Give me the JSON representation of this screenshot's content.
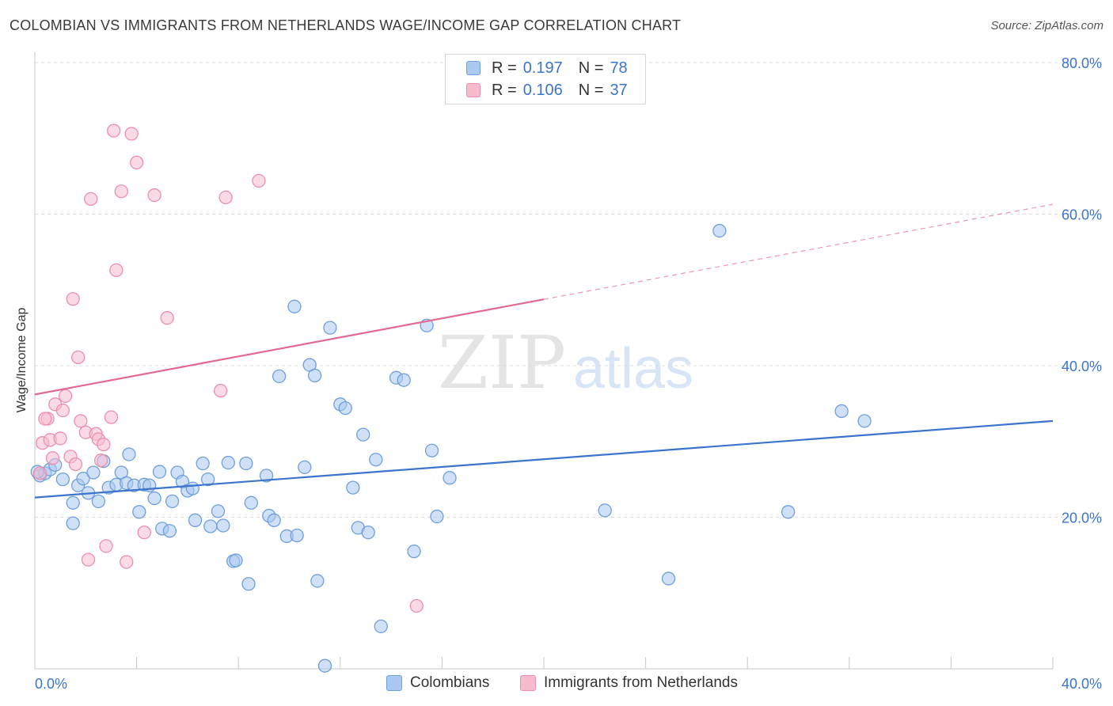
{
  "header": {
    "title": "COLOMBIAN VS IMMIGRANTS FROM NETHERLANDS WAGE/INCOME GAP CORRELATION CHART",
    "source": "Source: ZipAtlas.com"
  },
  "watermark": {
    "zip": "ZIP",
    "atlas": "atlas"
  },
  "legend_top": {
    "rows": [
      {
        "r_label": "R =",
        "r_value": "0.197",
        "n_label": "N =",
        "n_value": "78"
      },
      {
        "r_label": "R =",
        "r_value": "0.106",
        "n_label": "N =",
        "n_value": "37"
      }
    ]
  },
  "bottom_legend": {
    "items": [
      "Colombians",
      "Immigrants from Netherlands"
    ]
  },
  "colors": {
    "blue_fill": "#a9c9f0",
    "blue_stroke": "#6f9fdc",
    "blue_line": "#3a74cc",
    "pink_fill": "#f6bccd",
    "pink_stroke": "#ec8fab",
    "pink_line": "#e06a94",
    "axis_text": "#3a74cc",
    "grid": "#dddddd"
  },
  "chart_data": {
    "type": "scatter",
    "title": "COLOMBIAN VS IMMIGRANTS FROM NETHERLANDS WAGE/INCOME GAP CORRELATION CHART",
    "xlabel": "",
    "ylabel": "Wage/Income Gap",
    "xlim": [
      0,
      40
    ],
    "ylim": [
      0,
      80
    ],
    "x_tick_labels": [
      "0.0%",
      "40.0%"
    ],
    "y_tick_values": [
      20,
      40,
      60,
      80
    ],
    "y_tick_labels": [
      "20.0%",
      "40.0%",
      "60.0%",
      "80.0%"
    ],
    "grid": true,
    "legend_position": "top-center",
    "series": [
      {
        "name": "Colombians",
        "r": 0.197,
        "n": 78,
        "trend": {
          "x": [
            0,
            40
          ],
          "y": [
            22.6,
            32.7
          ],
          "dashed_from": null
        },
        "points": [
          [
            0.2,
            25.5
          ],
          [
            0.4,
            25.8
          ],
          [
            0.6,
            26.3
          ],
          [
            0.8,
            26.9
          ],
          [
            1.1,
            25.0
          ],
          [
            1.5,
            19.2
          ],
          [
            1.5,
            21.9
          ],
          [
            1.7,
            24.2
          ],
          [
            1.9,
            25.1
          ],
          [
            2.1,
            23.2
          ],
          [
            2.3,
            25.9
          ],
          [
            2.5,
            22.1
          ],
          [
            2.7,
            27.4
          ],
          [
            2.9,
            23.9
          ],
          [
            3.2,
            24.3
          ],
          [
            3.4,
            25.9
          ],
          [
            3.6,
            24.5
          ],
          [
            3.7,
            28.3
          ],
          [
            3.9,
            24.2
          ],
          [
            4.1,
            20.7
          ],
          [
            4.3,
            24.3
          ],
          [
            4.5,
            24.2
          ],
          [
            4.7,
            22.5
          ],
          [
            4.9,
            26.0
          ],
          [
            5.0,
            18.5
          ],
          [
            5.3,
            18.2
          ],
          [
            5.4,
            22.1
          ],
          [
            5.6,
            25.9
          ],
          [
            5.8,
            24.7
          ],
          [
            6.0,
            23.5
          ],
          [
            6.2,
            23.8
          ],
          [
            6.3,
            19.6
          ],
          [
            6.6,
            27.1
          ],
          [
            6.8,
            25.0
          ],
          [
            6.9,
            18.8
          ],
          [
            7.2,
            20.8
          ],
          [
            7.4,
            18.9
          ],
          [
            7.6,
            27.2
          ],
          [
            7.8,
            14.2
          ],
          [
            7.9,
            14.3
          ],
          [
            8.3,
            27.1
          ],
          [
            8.4,
            11.2
          ],
          [
            8.5,
            21.9
          ],
          [
            9.1,
            25.5
          ],
          [
            9.2,
            20.2
          ],
          [
            9.4,
            19.6
          ],
          [
            9.6,
            38.6
          ],
          [
            9.9,
            17.5
          ],
          [
            10.2,
            47.8
          ],
          [
            10.3,
            17.6
          ],
          [
            10.6,
            26.6
          ],
          [
            10.8,
            40.1
          ],
          [
            11.0,
            38.7
          ],
          [
            11.1,
            11.6
          ],
          [
            11.4,
            0.4
          ],
          [
            11.6,
            45.0
          ],
          [
            12.0,
            34.9
          ],
          [
            12.2,
            34.4
          ],
          [
            12.5,
            23.9
          ],
          [
            12.7,
            18.6
          ],
          [
            12.9,
            30.9
          ],
          [
            13.1,
            18.0
          ],
          [
            13.4,
            27.6
          ],
          [
            13.6,
            5.6
          ],
          [
            14.2,
            38.4
          ],
          [
            14.5,
            38.1
          ],
          [
            14.9,
            15.5
          ],
          [
            15.4,
            45.3
          ],
          [
            15.6,
            28.8
          ],
          [
            15.8,
            20.1
          ],
          [
            16.3,
            25.2
          ],
          [
            22.4,
            20.9
          ],
          [
            24.9,
            11.9
          ],
          [
            26.9,
            57.8
          ],
          [
            29.6,
            20.7
          ],
          [
            31.7,
            34.0
          ],
          [
            32.6,
            32.7
          ],
          [
            0.1,
            26.0
          ]
        ]
      },
      {
        "name": "Immigrants from Netherlands",
        "r": 0.106,
        "n": 37,
        "trend": {
          "x": [
            0,
            40
          ],
          "y": [
            36.2,
            61.3
          ],
          "dashed_from": 20
        },
        "points": [
          [
            0.2,
            25.8
          ],
          [
            0.3,
            29.8
          ],
          [
            0.5,
            33.0
          ],
          [
            0.6,
            30.2
          ],
          [
            0.7,
            27.8
          ],
          [
            0.8,
            34.9
          ],
          [
            1.0,
            30.4
          ],
          [
            1.1,
            34.1
          ],
          [
            1.2,
            36.0
          ],
          [
            1.4,
            28.0
          ],
          [
            1.5,
            48.8
          ],
          [
            1.6,
            27.0
          ],
          [
            1.7,
            41.1
          ],
          [
            1.8,
            32.7
          ],
          [
            2.0,
            31.2
          ],
          [
            2.1,
            14.4
          ],
          [
            2.2,
            62.0
          ],
          [
            2.4,
            31.0
          ],
          [
            2.5,
            30.3
          ],
          [
            2.6,
            27.5
          ],
          [
            2.7,
            29.6
          ],
          [
            2.8,
            16.2
          ],
          [
            3.0,
            33.2
          ],
          [
            3.1,
            71.0
          ],
          [
            3.2,
            52.6
          ],
          [
            3.4,
            63.0
          ],
          [
            3.6,
            14.1
          ],
          [
            3.8,
            70.6
          ],
          [
            4.0,
            66.8
          ],
          [
            4.3,
            18.0
          ],
          [
            4.7,
            62.5
          ],
          [
            5.2,
            46.3
          ],
          [
            7.3,
            36.7
          ],
          [
            7.5,
            62.2
          ],
          [
            8.8,
            64.4
          ],
          [
            15.0,
            8.3
          ],
          [
            0.4,
            33.0
          ]
        ]
      }
    ]
  }
}
